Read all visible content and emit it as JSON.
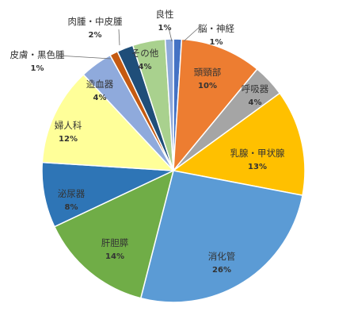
{
  "chart_data": {
    "type": "pie",
    "slices": [
      {
        "name": "脳・神経",
        "pct_label": "1%",
        "value": 1,
        "color": "#4472c4"
      },
      {
        "name": "頭頸部",
        "pct_label": "10%",
        "value": 10,
        "color": "#ed7d31"
      },
      {
        "name": "呼吸器",
        "pct_label": "4%",
        "value": 4,
        "color": "#a5a5a5"
      },
      {
        "name": "乳腺・甲状腺",
        "pct_label": "13%",
        "value": 13,
        "color": "#ffc000"
      },
      {
        "name": "消化管",
        "pct_label": "26%",
        "value": 26,
        "color": "#5b9bd5"
      },
      {
        "name": "肝胆膵",
        "pct_label": "14%",
        "value": 14,
        "color": "#70ad47"
      },
      {
        "name": "泌尿器",
        "pct_label": "8%",
        "value": 8,
        "color": "#2e75b6"
      },
      {
        "name": "婦人科",
        "pct_label": "12%",
        "value": 12,
        "color": "#ffff99"
      },
      {
        "name": "造血器",
        "pct_label": "4%",
        "value": 4,
        "color": "#8faadc"
      },
      {
        "name": "皮膚・黒色腫",
        "pct_label": "1%",
        "value": 1,
        "color": "#c55a11"
      },
      {
        "name": "肉腫・中皮腫",
        "pct_label": "2%",
        "value": 2,
        "color": "#1f4e79"
      },
      {
        "name": "その他",
        "pct_label": "4%",
        "value": 4,
        "color": "#a9d18e"
      },
      {
        "name": "良性",
        "pct_label": "1%",
        "value": 1,
        "color": "#8ea9db"
      }
    ]
  }
}
